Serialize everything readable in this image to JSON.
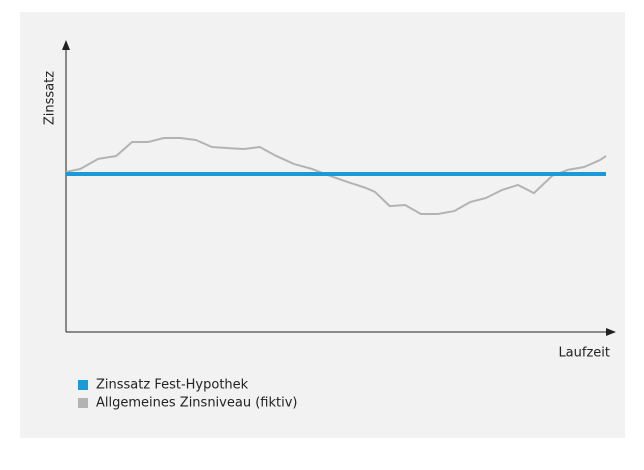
{
  "chart_data": {
    "type": "line",
    "y_label": "Zinssatz",
    "x_label": "Laufzeit",
    "x": [
      0,
      2.6,
      5.9,
      9.2,
      12.1,
      15.0,
      17.9,
      20.9,
      23.8,
      26.7,
      29.7,
      32.6,
      35.5,
      38.5,
      41.8,
      45.1,
      48.4,
      51.6,
      54.9,
      56.6,
      59.3,
      62.1,
      65.0,
      68.1,
      71.1,
      74.0,
      76.9,
      79.9,
      82.8,
      85.7,
      89.0,
      91.9,
      94.9,
      97.8,
      98.9
    ],
    "xlim": [
      0,
      100
    ],
    "ylim": [
      0,
      100
    ],
    "series": [
      {
        "name": "Zinssatz Fest-Hypothek",
        "color": "#1a9ad6",
        "values": [
          54.5,
          54.5,
          54.5,
          54.5,
          54.5,
          54.5,
          54.5,
          54.5,
          54.5,
          54.5,
          54.5,
          54.5,
          54.5,
          54.5,
          54.5,
          54.5,
          54.5,
          54.5,
          54.5,
          54.5,
          54.5,
          54.5,
          54.5,
          54.5,
          54.5,
          54.5,
          54.5,
          54.5,
          54.5,
          54.5,
          54.5,
          54.5,
          54.5,
          54.5,
          54.5
        ]
      },
      {
        "name": "Allgemeines Zinsniveau (fiktiv)",
        "color": "#b3b3b3",
        "values": [
          55.2,
          56.2,
          59.7,
          60.7,
          65.5,
          65.5,
          66.9,
          66.9,
          66.2,
          63.8,
          63.4,
          63.1,
          63.8,
          60.7,
          57.9,
          56.2,
          53.8,
          51.7,
          49.7,
          48.3,
          43.4,
          43.8,
          40.7,
          40.7,
          41.7,
          44.8,
          46.2,
          49.0,
          50.7,
          47.9,
          53.8,
          55.9,
          56.9,
          59.3,
          60.7
        ]
      }
    ]
  }
}
